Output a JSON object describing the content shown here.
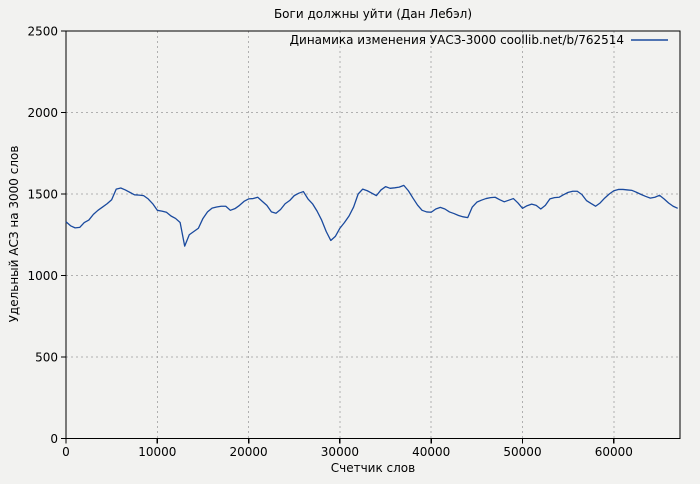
{
  "colors": {
    "background": "#f2f2f0",
    "border": "#000000",
    "grid": "#b0b0b0",
    "text": "#000000",
    "series_line": "#1a4a9e"
  },
  "chart_data": {
    "type": "line",
    "title": "Боги должны уйти (Дан Лебэл)",
    "xlabel": "Счетчик слов",
    "ylabel": "Удельный АСЗ на 3000 слов",
    "xlim": [
      0,
      67250
    ],
    "ylim": [
      0,
      2500
    ],
    "xticks": [
      0,
      10000,
      20000,
      30000,
      40000,
      50000,
      60000
    ],
    "yticks": [
      0,
      500,
      1000,
      1500,
      2000,
      2500
    ],
    "grid": true,
    "legend_position": "top-right-inside",
    "series": [
      {
        "name": "Динамика изменения УАСЗ-3000 coollib.net/b/762514",
        "color": "#1a4a9e",
        "points": [
          [
            0,
            1330
          ],
          [
            500,
            1305
          ],
          [
            1000,
            1292
          ],
          [
            1500,
            1295
          ],
          [
            2000,
            1325
          ],
          [
            2500,
            1340
          ],
          [
            3000,
            1375
          ],
          [
            3500,
            1400
          ],
          [
            4000,
            1420
          ],
          [
            4500,
            1440
          ],
          [
            5000,
            1465
          ],
          [
            5500,
            1530
          ],
          [
            6000,
            1537
          ],
          [
            6500,
            1525
          ],
          [
            7000,
            1510
          ],
          [
            7500,
            1495
          ],
          [
            8000,
            1493
          ],
          [
            8500,
            1490
          ],
          [
            9000,
            1470
          ],
          [
            9500,
            1440
          ],
          [
            10000,
            1400
          ],
          [
            10500,
            1395
          ],
          [
            11000,
            1388
          ],
          [
            11500,
            1365
          ],
          [
            12000,
            1350
          ],
          [
            12500,
            1325
          ],
          [
            13000,
            1180
          ],
          [
            13500,
            1250
          ],
          [
            14000,
            1270
          ],
          [
            14500,
            1290
          ],
          [
            15000,
            1350
          ],
          [
            15500,
            1390
          ],
          [
            16000,
            1413
          ],
          [
            16500,
            1420
          ],
          [
            17000,
            1425
          ],
          [
            17500,
            1425
          ],
          [
            18000,
            1400
          ],
          [
            18500,
            1410
          ],
          [
            19000,
            1430
          ],
          [
            19500,
            1455
          ],
          [
            20000,
            1470
          ],
          [
            20500,
            1472
          ],
          [
            21000,
            1480
          ],
          [
            21500,
            1455
          ],
          [
            22000,
            1430
          ],
          [
            22500,
            1390
          ],
          [
            23000,
            1382
          ],
          [
            23500,
            1405
          ],
          [
            24000,
            1440
          ],
          [
            24500,
            1460
          ],
          [
            25000,
            1490
          ],
          [
            25500,
            1505
          ],
          [
            26000,
            1515
          ],
          [
            26500,
            1470
          ],
          [
            27000,
            1440
          ],
          [
            27500,
            1395
          ],
          [
            28000,
            1340
          ],
          [
            28500,
            1270
          ],
          [
            29000,
            1215
          ],
          [
            29500,
            1240
          ],
          [
            30000,
            1290
          ],
          [
            30500,
            1325
          ],
          [
            31000,
            1365
          ],
          [
            31500,
            1420
          ],
          [
            32000,
            1500
          ],
          [
            32500,
            1530
          ],
          [
            33000,
            1520
          ],
          [
            33500,
            1505
          ],
          [
            34000,
            1490
          ],
          [
            34500,
            1525
          ],
          [
            35000,
            1545
          ],
          [
            35500,
            1535
          ],
          [
            36000,
            1538
          ],
          [
            36500,
            1542
          ],
          [
            37000,
            1553
          ],
          [
            37500,
            1520
          ],
          [
            38000,
            1475
          ],
          [
            38500,
            1432
          ],
          [
            39000,
            1400
          ],
          [
            39500,
            1390
          ],
          [
            40000,
            1388
          ],
          [
            40500,
            1408
          ],
          [
            41000,
            1418
          ],
          [
            41500,
            1408
          ],
          [
            42000,
            1390
          ],
          [
            42500,
            1380
          ],
          [
            43000,
            1368
          ],
          [
            43500,
            1360
          ],
          [
            44000,
            1355
          ],
          [
            44500,
            1420
          ],
          [
            45000,
            1450
          ],
          [
            45500,
            1462
          ],
          [
            46000,
            1472
          ],
          [
            46500,
            1478
          ],
          [
            47000,
            1480
          ],
          [
            47500,
            1465
          ],
          [
            48000,
            1452
          ],
          [
            48500,
            1462
          ],
          [
            49000,
            1472
          ],
          [
            49500,
            1445
          ],
          [
            50000,
            1412
          ],
          [
            50500,
            1428
          ],
          [
            51000,
            1438
          ],
          [
            51500,
            1430
          ],
          [
            52000,
            1408
          ],
          [
            52500,
            1430
          ],
          [
            53000,
            1470
          ],
          [
            53500,
            1478
          ],
          [
            54000,
            1480
          ],
          [
            54500,
            1496
          ],
          [
            55000,
            1510
          ],
          [
            55500,
            1517
          ],
          [
            56000,
            1517
          ],
          [
            56500,
            1497
          ],
          [
            57000,
            1460
          ],
          [
            57500,
            1442
          ],
          [
            58000,
            1425
          ],
          [
            58500,
            1445
          ],
          [
            59000,
            1475
          ],
          [
            59500,
            1500
          ],
          [
            60000,
            1520
          ],
          [
            60500,
            1528
          ],
          [
            61000,
            1528
          ],
          [
            61500,
            1525
          ],
          [
            62000,
            1522
          ],
          [
            62500,
            1510
          ],
          [
            63000,
            1497
          ],
          [
            63500,
            1485
          ],
          [
            64000,
            1475
          ],
          [
            64500,
            1480
          ],
          [
            65000,
            1492
          ],
          [
            65500,
            1470
          ],
          [
            66000,
            1445
          ],
          [
            66500,
            1425
          ],
          [
            67000,
            1412
          ]
        ]
      }
    ]
  }
}
